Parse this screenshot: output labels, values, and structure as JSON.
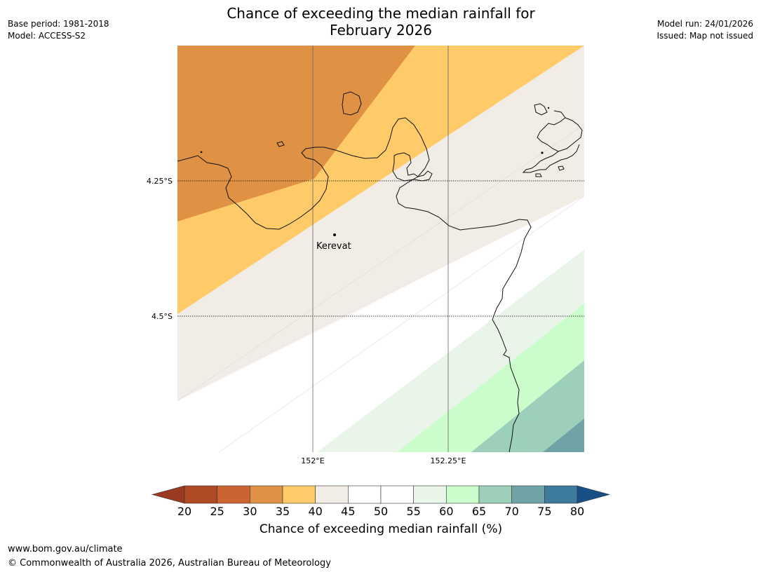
{
  "header": {
    "title_line1": "Chance of exceeding the median rainfall for",
    "title_line2": "February 2026",
    "base_period": "Base period: 1981-2018",
    "model": "Model: ACCESS-S2",
    "model_run": "Model run: 24/01/2026",
    "issued": "Issued: Map not issued"
  },
  "map": {
    "lat_labels": [
      "4.25°S",
      "4.5°S"
    ],
    "lon_labels": [
      "152°E",
      "152.25°E"
    ],
    "place": "Kerevat"
  },
  "colorbar": {
    "title": "Chance of exceeding median rainfall (%)",
    "ticks": [
      "20",
      "25",
      "30",
      "35",
      "40",
      "45",
      "50",
      "55",
      "60",
      "65",
      "70",
      "75",
      "80"
    ],
    "low_extend_color": "#9b3a22",
    "high_extend_color": "#174f86",
    "colors": [
      "#b04a25",
      "#cc6432",
      "#e09244",
      "#fecb68",
      "#f1ece6",
      "#ffffff",
      "#ffffff",
      "#e9f5e9",
      "#cbfccb",
      "#9dd0bb",
      "#6fa3a6",
      "#3e7a9b"
    ]
  },
  "footer": {
    "url": "www.bom.gov.au/climate",
    "copyright": "© Commonwealth of Australia 2026, Australian Bureau of Meteorology"
  }
}
